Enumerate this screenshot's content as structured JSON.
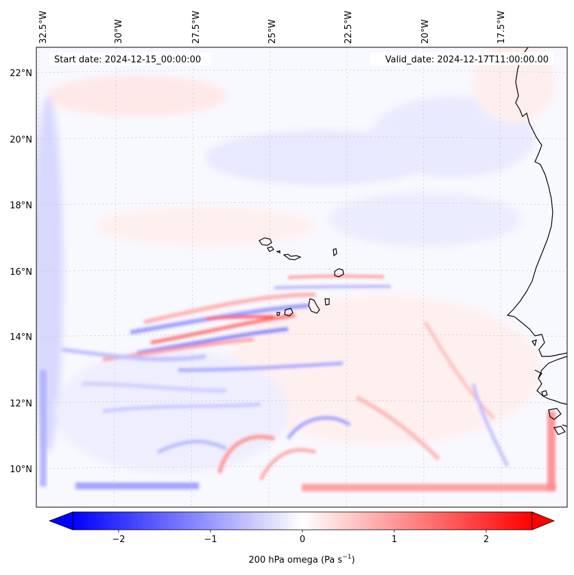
{
  "header": {
    "start_date": "Start date: 2024-12-15_00:00:00",
    "valid_date": "Valid_date: 2024-12-17T11:00:00.00"
  },
  "longitude_labels": [
    "32.5°W",
    "30°W",
    "27.5°W",
    "25°W",
    "22.5°W",
    "20°W",
    "17.5°W"
  ],
  "latitude_labels": [
    "22°N",
    "20°N",
    "18°N",
    "16°N",
    "14°N",
    "12°N",
    "10°N"
  ],
  "colorbar": {
    "label_text": "200 hPa omega (Pa s",
    "label_exponent": "−1",
    "label_close": ")",
    "tick_labels": [
      "−2",
      "−1",
      "0",
      "1",
      "2"
    ],
    "tick_values": [
      -2,
      -1,
      0,
      1,
      2
    ],
    "min": -2.5,
    "max": 2.5,
    "colormap": "bwr",
    "extend": "both"
  },
  "colors": {
    "negative": "#0000ff",
    "neutral": "#ffffff",
    "positive": "#ff0000",
    "coastline": "#000000",
    "gridline": "#c8c8c8"
  }
}
